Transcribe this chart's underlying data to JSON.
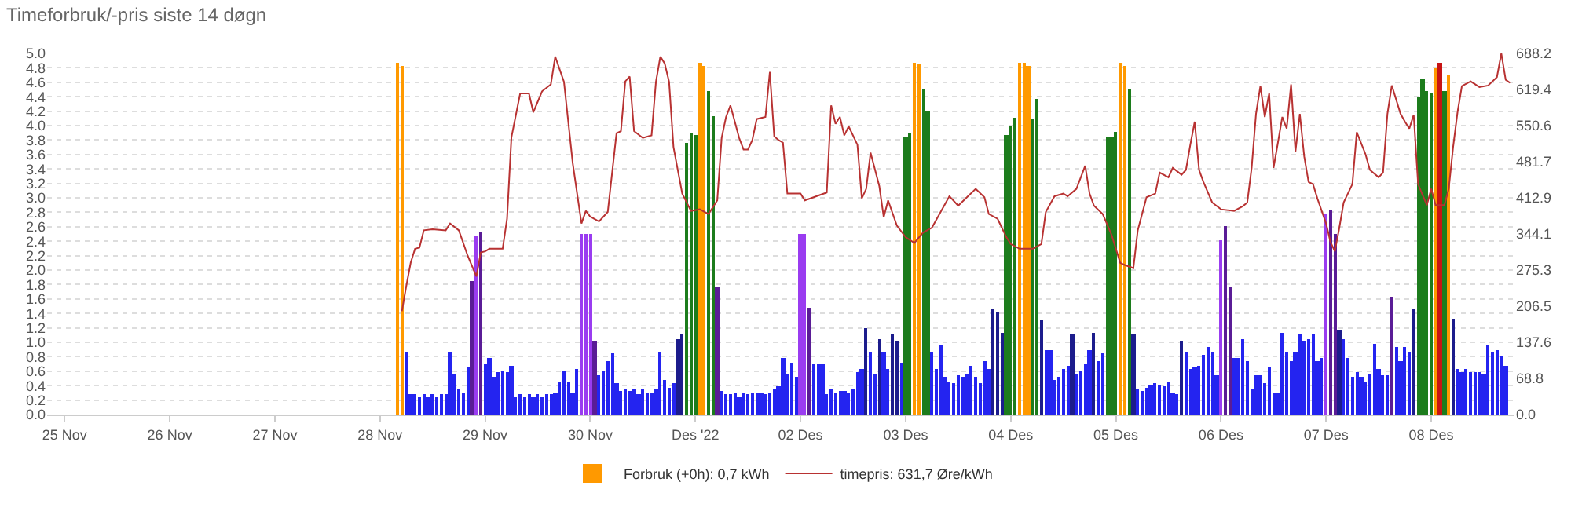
{
  "chart_data": {
    "type": "bar",
    "title": "Timeforbruk/-pris siste 14 døgn",
    "xlim": [
      "2022-11-24T20:00",
      "2022-12-08T19:00"
    ],
    "xticks": [
      {
        "value": "2022-11-25",
        "label": "25 Nov"
      },
      {
        "value": "2022-11-26",
        "label": "26 Nov"
      },
      {
        "value": "2022-11-27",
        "label": "27 Nov"
      },
      {
        "value": "2022-11-28",
        "label": "28 Nov"
      },
      {
        "value": "2022-11-29",
        "label": "29 Nov"
      },
      {
        "value": "2022-11-30",
        "label": "30 Nov"
      },
      {
        "value": "2022-12-01",
        "label": "Des '22"
      },
      {
        "value": "2022-12-02",
        "label": "02 Des"
      },
      {
        "value": "2022-12-03",
        "label": "03 Des"
      },
      {
        "value": "2022-12-04",
        "label": "04 Des"
      },
      {
        "value": "2022-12-05",
        "label": "05 Des"
      },
      {
        "value": "2022-12-06",
        "label": "06 Des"
      },
      {
        "value": "2022-12-07",
        "label": "07 Des"
      },
      {
        "value": "2022-12-08",
        "label": "08 Des"
      }
    ],
    "ylim": [
      0,
      5
    ],
    "yticks": [
      {
        "value": 0,
        "label": "0.0"
      },
      0.2,
      0.4,
      0.6,
      0.8,
      {
        "value": 1,
        "label": "1.0"
      },
      1.2,
      1.4,
      1.6,
      1.8,
      {
        "value": 2,
        "label": "2.0"
      },
      2.2,
      2.4,
      2.6,
      2.8,
      {
        "value": 3,
        "label": "3.0"
      },
      3.2,
      3.4,
      3.6,
      3.8,
      {
        "value": 4,
        "label": "4.0"
      },
      4.2,
      4.4,
      4.6,
      4.8,
      {
        "value": 5,
        "label": "5.0"
      }
    ],
    "y2lim": [
      0,
      688.2
    ],
    "y2ticks": [
      {
        "value": 0,
        "label": "0.0"
      },
      68.8,
      137.6,
      206.5,
      275.3,
      344.1,
      412.9,
      481.7,
      550.6,
      619.4,
      688.2
    ],
    "grid": "y",
    "legend": "bottom",
    "series": [
      {
        "name": "Forbruk (+0h): 0,7 kWh",
        "x": [
          "2022-11-28T04:00",
          "2022-11-28T05:00",
          "2022-11-28T06:00",
          "2022-11-28T07:00",
          "2022-11-28T08:00",
          "2022-11-28T09:00",
          "2022-11-28T10:00",
          "2022-11-28T11:00",
          "2022-11-28T12:00",
          "2022-11-28T13:00",
          "2022-11-28T14:00",
          "2022-11-28T15:00",
          "2022-11-28T16:00",
          "2022-11-28T17:00",
          "2022-11-28T18:00",
          "2022-11-28T19:00",
          "2022-11-28T20:00",
          "2022-11-28T21:00",
          "2022-11-28T22:00",
          "2022-11-28T23:00",
          "2022-11-29T00:00",
          "2022-11-29T01:00",
          "2022-11-29T02:00",
          "2022-11-29T03:00",
          "2022-11-29T04:00",
          "2022-11-29T05:00",
          "2022-11-29T06:00",
          "2022-11-29T07:00",
          "2022-11-29T08:00",
          "2022-11-29T09:00",
          "2022-11-29T10:00",
          "2022-11-29T11:00",
          "2022-11-29T12:00",
          "2022-11-29T13:00",
          "2022-11-29T14:00",
          "2022-11-29T15:00",
          "2022-11-29T16:00",
          "2022-11-29T17:00",
          "2022-11-29T18:00",
          "2022-11-29T19:00",
          "2022-11-29T20:00",
          "2022-11-29T21:00",
          "2022-11-29T22:00",
          "2022-11-29T23:00",
          "2022-11-30T00:00",
          "2022-11-30T01:00",
          "2022-11-30T02:00",
          "2022-11-30T03:00",
          "2022-11-30T04:00",
          "2022-11-30T05:00",
          "2022-11-30T06:00",
          "2022-11-30T07:00",
          "2022-11-30T08:00",
          "2022-11-30T09:00",
          "2022-11-30T10:00",
          "2022-11-30T11:00",
          "2022-11-30T12:00",
          "2022-11-30T13:00",
          "2022-11-30T14:00",
          "2022-11-30T15:00",
          "2022-11-30T16:00",
          "2022-11-30T17:00",
          "2022-11-30T18:00",
          "2022-11-30T19:00",
          "2022-11-30T20:00",
          "2022-11-30T21:00",
          "2022-11-30T22:00",
          "2022-11-30T23:00",
          "2022-12-01T00:00",
          "2022-12-01T01:00",
          "2022-12-01T02:00",
          "2022-12-01T03:00",
          "2022-12-01T04:00",
          "2022-12-01T05:00",
          "2022-12-01T06:00",
          "2022-12-01T07:00",
          "2022-12-01T08:00",
          "2022-12-01T09:00",
          "2022-12-01T10:00",
          "2022-12-01T11:00",
          "2022-12-01T12:00",
          "2022-12-01T13:00",
          "2022-12-01T14:00",
          "2022-12-01T15:00",
          "2022-12-01T16:00",
          "2022-12-01T17:00",
          "2022-12-01T18:00",
          "2022-12-01T19:00",
          "2022-12-01T20:00",
          "2022-12-01T21:00",
          "2022-12-01T22:00",
          "2022-12-01T23:00",
          "2022-12-02T00:00",
          "2022-12-02T01:00",
          "2022-12-02T02:00",
          "2022-12-02T03:00",
          "2022-12-02T04:00",
          "2022-12-02T05:00",
          "2022-12-02T06:00",
          "2022-12-02T07:00",
          "2022-12-02T08:00",
          "2022-12-02T09:00",
          "2022-12-02T10:00",
          "2022-12-02T11:00",
          "2022-12-02T12:00",
          "2022-12-02T13:00",
          "2022-12-02T14:00",
          "2022-12-02T15:00",
          "2022-12-02T16:00",
          "2022-12-02T17:00",
          "2022-12-02T18:00",
          "2022-12-02T19:00",
          "2022-12-02T20:00",
          "2022-12-02T21:00",
          "2022-12-02T22:00",
          "2022-12-02T23:00",
          "2022-12-03T00:00",
          "2022-12-03T01:00",
          "2022-12-03T02:00",
          "2022-12-03T03:00",
          "2022-12-03T04:00",
          "2022-12-03T05:00",
          "2022-12-03T06:00",
          "2022-12-03T07:00",
          "2022-12-03T08:00",
          "2022-12-03T09:00",
          "2022-12-03T10:00",
          "2022-12-03T11:00",
          "2022-12-03T12:00",
          "2022-12-03T13:00",
          "2022-12-03T14:00",
          "2022-12-03T15:00",
          "2022-12-03T16:00",
          "2022-12-03T17:00",
          "2022-12-03T18:00",
          "2022-12-03T19:00",
          "2022-12-03T20:00",
          "2022-12-03T21:00",
          "2022-12-03T22:00",
          "2022-12-03T23:00",
          "2022-12-04T00:00",
          "2022-12-04T01:00",
          "2022-12-04T02:00",
          "2022-12-04T03:00",
          "2022-12-04T04:00",
          "2022-12-04T05:00",
          "2022-12-04T06:00",
          "2022-12-04T07:00",
          "2022-12-04T08:00",
          "2022-12-04T09:00",
          "2022-12-04T10:00",
          "2022-12-04T11:00",
          "2022-12-04T12:00",
          "2022-12-04T13:00",
          "2022-12-04T14:00",
          "2022-12-04T15:00",
          "2022-12-04T16:00",
          "2022-12-04T17:00",
          "2022-12-04T18:00",
          "2022-12-04T19:00",
          "2022-12-04T20:00",
          "2022-12-04T21:00",
          "2022-12-04T22:00",
          "2022-12-04T23:00",
          "2022-12-05T00:00",
          "2022-12-05T01:00",
          "2022-12-05T02:00",
          "2022-12-05T03:00",
          "2022-12-05T04:00",
          "2022-12-05T05:00",
          "2022-12-05T06:00",
          "2022-12-05T07:00",
          "2022-12-05T08:00",
          "2022-12-05T09:00",
          "2022-12-05T10:00",
          "2022-12-05T11:00",
          "2022-12-05T12:00",
          "2022-12-05T13:00",
          "2022-12-05T14:00",
          "2022-12-05T15:00",
          "2022-12-05T16:00",
          "2022-12-05T17:00",
          "2022-12-05T18:00",
          "2022-12-05T19:00",
          "2022-12-05T20:00",
          "2022-12-05T21:00",
          "2022-12-05T22:00",
          "2022-12-05T23:00",
          "2022-12-06T00:00",
          "2022-12-06T01:00",
          "2022-12-06T02:00",
          "2022-12-06T03:00",
          "2022-12-06T04:00",
          "2022-12-06T05:00",
          "2022-12-06T06:00",
          "2022-12-06T07:00",
          "2022-12-06T08:00",
          "2022-12-06T09:00",
          "2022-12-06T10:00",
          "2022-12-06T11:00",
          "2022-12-06T12:00",
          "2022-12-06T13:00",
          "2022-12-06T14:00",
          "2022-12-06T15:00",
          "2022-12-06T16:00",
          "2022-12-06T17:00",
          "2022-12-06T18:00",
          "2022-12-06T19:00",
          "2022-12-06T20:00",
          "2022-12-06T21:00",
          "2022-12-06T22:00",
          "2022-12-06T23:00",
          "2022-12-07T00:00",
          "2022-12-07T01:00",
          "2022-12-07T02:00",
          "2022-12-07T03:00",
          "2022-12-07T04:00",
          "2022-12-07T05:00",
          "2022-12-07T06:00",
          "2022-12-07T07:00",
          "2022-12-07T08:00",
          "2022-12-07T09:00",
          "2022-12-07T10:00",
          "2022-12-07T11:00",
          "2022-12-07T12:00",
          "2022-12-07T13:00",
          "2022-12-07T14:00",
          "2022-12-07T15:00",
          "2022-12-07T16:00",
          "2022-12-07T17:00",
          "2022-12-07T18:00",
          "2022-12-07T19:00",
          "2022-12-07T20:00",
          "2022-12-07T21:00",
          "2022-12-07T22:00",
          "2022-12-07T23:00",
          "2022-12-08T00:00",
          "2022-12-08T01:00",
          "2022-12-08T02:00",
          "2022-12-08T03:00",
          "2022-12-08T04:00",
          "2022-12-08T05:00",
          "2022-12-08T06:00",
          "2022-12-08T07:00",
          "2022-12-08T08:00",
          "2022-12-08T09:00",
          "2022-12-08T10:00",
          "2022-12-08T11:00",
          "2022-12-08T12:00",
          "2022-12-08T13:00",
          "2022-12-08T14:00",
          "2022-12-08T15:00",
          "2022-12-08T16:00",
          "2022-12-08T17:00"
        ],
        "values": [
          4.87,
          4.83,
          0.88,
          0.28,
          0.28,
          0.24,
          0.28,
          0.24,
          0.28,
          0.24,
          0.28,
          0.28,
          0.88,
          0.56,
          0.35,
          0.31,
          0.65,
          1.85,
          2.47,
          2.53,
          0.7,
          0.79,
          0.52,
          0.58,
          0.6,
          0.59,
          0.67,
          0.24,
          0.28,
          0.24,
          0.28,
          0.24,
          0.28,
          0.24,
          0.28,
          0.28,
          0.31,
          0.46,
          0.6,
          0.46,
          0.31,
          0.62,
          2.5,
          2.5,
          2.5,
          1.02,
          0.55,
          0.6,
          0.75,
          0.84,
          0.44,
          0.33,
          0.35,
          0.33,
          0.35,
          0.28,
          0.35,
          0.31,
          0.31,
          0.35,
          0.88,
          0.48,
          0.36,
          0.44,
          1.04,
          1.1,
          3.76,
          3.9,
          3.88,
          4.87,
          4.83,
          4.48,
          4.14,
          1.77,
          0.33,
          0.28,
          0.28,
          0.31,
          0.24,
          0.31,
          0.28,
          0.31,
          0.31,
          0.31,
          0.28,
          0.31,
          0.35,
          0.4,
          0.79,
          0.56,
          0.71,
          0.52,
          2.49,
          2.49,
          1.48,
          0.69,
          0.7,
          0.7,
          0.28,
          0.35,
          0.31,
          0.33,
          0.33,
          0.31,
          0.35,
          0.59,
          0.63,
          1.19,
          0.88,
          0.57,
          1.04,
          0.88,
          0.63,
          1.1,
          1.02,
          0.71,
          3.85,
          3.9,
          4.87,
          4.84,
          4.5,
          4.2,
          0.88,
          0.63,
          0.95,
          0.53,
          0.46,
          0.44,
          0.54,
          0.52,
          0.56,
          0.67,
          0.52,
          0.44,
          0.75,
          0.64,
          1.46,
          1.42,
          1.14,
          3.88,
          4.0,
          4.1,
          4.87,
          4.87,
          4.83,
          4.08,
          4.38,
          1.3,
          0.9,
          0.9,
          0.48,
          0.53,
          0.64,
          0.67,
          1.11,
          0.56,
          0.6,
          0.69,
          0.9,
          1.12,
          0.75,
          0.84,
          3.85,
          3.85,
          3.92,
          4.87,
          4.83,
          4.5,
          1.1,
          0.34,
          0.33,
          0.36,
          0.41,
          0.44,
          0.42,
          0.39,
          0.46,
          0.31,
          0.29,
          1.02,
          0.88,
          0.62,
          0.66,
          0.67,
          0.83,
          0.94,
          0.88,
          0.55,
          2.42,
          2.61,
          1.76,
          0.78,
          0.78,
          1.04,
          0.75,
          0.34,
          0.54,
          0.54,
          0.44,
          0.66,
          0.31,
          0.31,
          1.12,
          0.88,
          0.75,
          0.88,
          1.1,
          1.02,
          1.04,
          1.1,
          0.75,
          0.79,
          2.78,
          2.83,
          2.49,
          1.17,
          1.04,
          0.79,
          0.52,
          0.59,
          0.52,
          0.46,
          0.56,
          0.98,
          0.62,
          0.54,
          0.54,
          1.64,
          0.94,
          0.75,
          0.94,
          0.88,
          1.46,
          4.4,
          4.65,
          4.47,
          4.45,
          4.8,
          4.87,
          4.47,
          4.7,
          1.33,
          0.64,
          0.58,
          0.62,
          0.59,
          0.59,
          0.59,
          0.57,
          0.96,
          0.88,
          0.9,
          0.8,
          0.68
        ],
        "colors": [
          "#ff9900",
          "#ff9900",
          "#2424f0",
          "#2424f0",
          "#2424f0",
          "#2424f0",
          "#2424f0",
          "#2424f0",
          "#2424f0",
          "#2424f0",
          "#2424f0",
          "#2424f0",
          "#2424f0",
          "#2424f0",
          "#2424f0",
          "#2424f0",
          "#2424f0",
          "#5a1c96",
          "#9a3cf0",
          "#5a1c96",
          "#2424f0",
          "#2424f0",
          "#2424f0",
          "#2424f0",
          "#2424f0",
          "#2424f0",
          "#2424f0",
          "#2424f0",
          "#2424f0",
          "#2424f0",
          "#2424f0",
          "#2424f0",
          "#2424f0",
          "#2424f0",
          "#2424f0",
          "#2424f0",
          "#2424f0",
          "#2424f0",
          "#2424f0",
          "#2424f0",
          "#2424f0",
          "#2424f0",
          "#9a3cf0",
          "#9a3cf0",
          "#9a3cf0",
          "#5a1c96",
          "#2424f0",
          "#2424f0",
          "#2424f0",
          "#2424f0",
          "#2424f0",
          "#2424f0",
          "#2424f0",
          "#2424f0",
          "#2424f0",
          "#2424f0",
          "#2424f0",
          "#2424f0",
          "#2424f0",
          "#2424f0",
          "#2424f0",
          "#2424f0",
          "#2424f0",
          "#2424f0",
          "#1c1c8c",
          "#1c1c8c",
          "#1c7c1c",
          "#1c7c1c",
          "#1c7c1c",
          "#ff9900",
          "#ff9900",
          "#1c7c1c",
          "#1c7c1c",
          "#5a1c96",
          "#2424f0",
          "#2424f0",
          "#2424f0",
          "#2424f0",
          "#2424f0",
          "#2424f0",
          "#2424f0",
          "#2424f0",
          "#2424f0",
          "#2424f0",
          "#2424f0",
          "#2424f0",
          "#2424f0",
          "#2424f0",
          "#2424f0",
          "#2424f0",
          "#2424f0",
          "#2424f0",
          "#9a3cf0",
          "#9a3cf0",
          "#5a1c96",
          "#2424f0",
          "#2424f0",
          "#2424f0",
          "#2424f0",
          "#2424f0",
          "#2424f0",
          "#2424f0",
          "#2424f0",
          "#2424f0",
          "#2424f0",
          "#2424f0",
          "#2424f0",
          "#1c1c8c",
          "#2424f0",
          "#2424f0",
          "#1c1c8c",
          "#2424f0",
          "#2424f0",
          "#1c1c8c",
          "#1c1c8c",
          "#2424f0",
          "#1c7c1c",
          "#1c7c1c",
          "#ff9900",
          "#ff9900",
          "#1c7c1c",
          "#1c7c1c",
          "#2424f0",
          "#2424f0",
          "#2424f0",
          "#2424f0",
          "#2424f0",
          "#2424f0",
          "#2424f0",
          "#2424f0",
          "#2424f0",
          "#2424f0",
          "#2424f0",
          "#2424f0",
          "#2424f0",
          "#2424f0",
          "#1c1c8c",
          "#1c1c8c",
          "#1c1c8c",
          "#1c7c1c",
          "#1c7c1c",
          "#1c7c1c",
          "#ff9900",
          "#ff9900",
          "#ff9900",
          "#1c7c1c",
          "#1c7c1c",
          "#1c1c8c",
          "#2424f0",
          "#2424f0",
          "#2424f0",
          "#2424f0",
          "#2424f0",
          "#2424f0",
          "#1c1c8c",
          "#2424f0",
          "#2424f0",
          "#2424f0",
          "#2424f0",
          "#1c1c8c",
          "#2424f0",
          "#2424f0",
          "#1c7c1c",
          "#1c7c1c",
          "#1c7c1c",
          "#ff9900",
          "#ff9900",
          "#1c7c1c",
          "#1c1c8c",
          "#2424f0",
          "#2424f0",
          "#2424f0",
          "#2424f0",
          "#2424f0",
          "#2424f0",
          "#2424f0",
          "#2424f0",
          "#2424f0",
          "#2424f0",
          "#1c1c8c",
          "#2424f0",
          "#2424f0",
          "#2424f0",
          "#2424f0",
          "#2424f0",
          "#2424f0",
          "#2424f0",
          "#2424f0",
          "#9a3cf0",
          "#5a1c96",
          "#5a1c96",
          "#2424f0",
          "#2424f0",
          "#2424f0",
          "#2424f0",
          "#2424f0",
          "#2424f0",
          "#2424f0",
          "#2424f0",
          "#2424f0",
          "#2424f0",
          "#2424f0",
          "#2424f0",
          "#2424f0",
          "#2424f0",
          "#2424f0",
          "#2424f0",
          "#2424f0",
          "#2424f0",
          "#2424f0",
          "#2424f0",
          "#2424f0",
          "#9a3cf0",
          "#5a1c96",
          "#5a1c96",
          "#1c1c8c",
          "#2424f0",
          "#2424f0",
          "#2424f0",
          "#2424f0",
          "#2424f0",
          "#2424f0",
          "#2424f0",
          "#2424f0",
          "#2424f0",
          "#2424f0",
          "#2424f0",
          "#5a1c96",
          "#2424f0",
          "#2424f0",
          "#2424f0",
          "#2424f0",
          "#1c1c8c",
          "#1c7c1c",
          "#1c7c1c",
          "#1c7c1c",
          "#1c7c1c",
          "#ff9900",
          "#c81414",
          "#1c7c1c",
          "#ff9900",
          "#1c1c8c",
          "#2424f0",
          "#2424f0",
          "#2424f0",
          "#2424f0",
          "#2424f0",
          "#2424f0",
          "#2424f0",
          "#2424f0",
          "#2424f0",
          "#2424f0",
          "#2424f0",
          "#2424f0"
        ]
      },
      {
        "name": "timepris: 631,7 Øre/kWh",
        "type": "line",
        "axis": "y2",
        "color": "#b83232",
        "x": [
          "2022-11-28T05:00",
          "2022-11-28T06:00",
          "2022-11-28T07:00",
          "2022-11-28T08:00",
          "2022-11-28T09:00",
          "2022-11-28T10:00",
          "2022-11-28T12:00",
          "2022-11-28T15:00",
          "2022-11-28T16:00",
          "2022-11-28T18:00",
          "2022-11-28T20:00",
          "2022-11-28T22:00",
          "2022-11-28T23:00",
          "2022-11-29T00:00",
          "2022-11-29T01:00",
          "2022-11-29T04:00",
          "2022-11-29T05:00",
          "2022-11-29T06:00",
          "2022-11-29T08:00",
          "2022-11-29T10:00",
          "2022-11-29T11:00",
          "2022-11-29T13:00",
          "2022-11-29T15:00",
          "2022-11-29T16:00",
          "2022-11-29T18:00",
          "2022-11-29T20:00",
          "2022-11-29T22:00",
          "2022-11-29T23:00",
          "2022-11-30T00:00",
          "2022-11-30T02:00",
          "2022-11-30T04:00",
          "2022-11-30T06:00",
          "2022-11-30T07:00",
          "2022-11-30T08:00",
          "2022-11-30T09:00",
          "2022-11-30T10:00",
          "2022-11-30T12:00",
          "2022-11-30T14:00",
          "2022-11-30T15:00",
          "2022-11-30T16:00",
          "2022-11-30T17:00",
          "2022-11-30T18:00",
          "2022-11-30T19:00",
          "2022-11-30T21:00",
          "2022-11-30T23:00",
          "2022-12-01T01:00",
          "2022-12-01T03:00",
          "2022-12-01T05:00",
          "2022-12-01T06:00",
          "2022-12-01T07:00",
          "2022-12-01T08:00",
          "2022-12-01T10:00",
          "2022-12-01T11:00",
          "2022-12-01T12:00",
          "2022-12-01T13:00",
          "2022-12-01T14:00",
          "2022-12-01T16:00",
          "2022-12-01T17:00",
          "2022-12-01T18:00",
          "2022-12-01T19:00",
          "2022-12-01T20:00",
          "2022-12-01T21:00",
          "2022-12-02T00:00",
          "2022-12-02T01:00",
          "2022-12-02T03:00",
          "2022-12-02T06:00",
          "2022-12-02T07:00",
          "2022-12-02T08:00",
          "2022-12-02T09:00",
          "2022-12-02T10:00",
          "2022-12-02T11:00",
          "2022-12-02T13:00",
          "2022-12-02T14:00",
          "2022-12-02T15:00",
          "2022-12-02T16:00",
          "2022-12-02T18:00",
          "2022-12-02T19:00",
          "2022-12-02T20:00",
          "2022-12-02T22:00",
          "2022-12-03T00:00",
          "2022-12-03T02:00",
          "2022-12-03T04:00",
          "2022-12-03T06:00",
          "2022-12-03T08:00",
          "2022-12-03T10:00",
          "2022-12-03T12:00",
          "2022-12-03T14:00",
          "2022-12-03T16:00",
          "2022-12-03T18:00",
          "2022-12-03T19:00",
          "2022-12-03T21:00",
          "2022-12-03T23:00",
          "2022-12-04T00:00",
          "2022-12-04T02:00",
          "2022-12-04T05:00",
          "2022-12-04T07:00",
          "2022-12-04T08:00",
          "2022-12-04T10:00",
          "2022-12-04T12:00",
          "2022-12-04T13:00",
          "2022-12-04T15:00",
          "2022-12-04T17:00",
          "2022-12-04T18:00",
          "2022-12-04T19:00",
          "2022-12-04T21:00",
          "2022-12-04T23:00",
          "2022-12-05T01:00",
          "2022-12-05T02:00",
          "2022-12-05T04:00",
          "2022-12-05T05:00",
          "2022-12-05T07:00",
          "2022-12-05T09:00",
          "2022-12-05T10:00",
          "2022-12-05T12:00",
          "2022-12-05T13:00",
          "2022-12-05T15:00",
          "2022-12-05T16:00",
          "2022-12-05T17:00",
          "2022-12-05T18:00",
          "2022-12-05T19:00",
          "2022-12-05T20:00",
          "2022-12-05T22:00",
          "2022-12-06T00:00",
          "2022-12-06T03:00",
          "2022-12-06T05:00",
          "2022-12-06T06:00",
          "2022-12-06T07:00",
          "2022-12-06T08:00",
          "2022-12-06T09:00",
          "2022-12-06T10:00",
          "2022-12-06T11:00",
          "2022-12-06T12:00",
          "2022-12-06T13:00",
          "2022-12-06T14:00",
          "2022-12-06T15:00",
          "2022-12-06T16:00",
          "2022-12-06T17:00",
          "2022-12-06T18:00",
          "2022-12-06T19:00",
          "2022-12-06T20:00",
          "2022-12-06T21:00",
          "2022-12-06T22:00",
          "2022-12-07T00:00",
          "2022-12-07T01:00",
          "2022-12-07T02:00",
          "2022-12-07T03:00",
          "2022-12-07T04:00",
          "2022-12-07T06:00",
          "2022-12-07T07:00",
          "2022-12-07T09:00",
          "2022-12-07T10:00",
          "2022-12-07T12:00",
          "2022-12-07T13:00",
          "2022-12-07T14:00",
          "2022-12-07T15:00",
          "2022-12-07T17:00",
          "2022-12-07T18:00",
          "2022-12-07T19:00",
          "2022-12-07T20:00",
          "2022-12-07T21:00",
          "2022-12-07T23:00",
          "2022-12-08T00:00",
          "2022-12-08T01:00",
          "2022-12-08T03:00",
          "2022-12-08T04:00",
          "2022-12-08T05:00",
          "2022-12-08T06:00",
          "2022-12-08T07:00",
          "2022-12-08T09:00",
          "2022-12-08T11:00",
          "2022-12-08T13:00",
          "2022-12-08T15:00",
          "2022-12-08T16:00",
          "2022-12-08T17:00",
          "2022-12-08T18:00"
        ],
        "values": [
          197,
          245,
          289,
          316,
          318,
          351,
          353,
          351,
          364,
          351,
          303,
          263,
          309,
          311,
          316,
          316,
          373,
          528,
          612,
          612,
          576,
          616,
          629,
          682,
          634,
          479,
          364,
          388,
          377,
          368,
          386,
          536,
          540,
          635,
          644,
          540,
          527,
          532,
          634,
          682,
          669,
          634,
          510,
          421,
          388,
          391,
          382,
          408,
          527,
          567,
          589,
          527,
          505,
          505,
          523,
          563,
          567,
          653,
          530,
          523,
          518,
          421,
          421,
          408,
          414,
          423,
          589,
          554,
          567,
          532,
          549,
          514,
          412,
          430,
          499,
          435,
          376,
          408,
          360,
          338,
          327,
          347,
          356,
          386,
          416,
          398,
          414,
          430,
          414,
          382,
          373,
          338,
          325,
          316,
          316,
          325,
          386,
          416,
          421,
          416,
          430,
          474,
          421,
          398,
          382,
          343,
          289,
          285,
          279,
          351,
          414,
          421,
          461,
          452,
          470,
          457,
          466,
          514,
          558,
          466,
          443,
          404,
          391,
          388,
          397,
          404,
          470,
          573,
          626,
          567,
          612,
          470,
          518,
          567,
          545,
          629,
          501,
          573,
          492,
          443,
          439,
          412,
          364,
          329,
          311,
          355,
          404,
          439,
          538,
          496,
          466,
          452,
          461,
          573,
          627,
          573,
          558,
          545,
          571,
          439,
          399,
          430,
          399,
          399,
          430,
          510,
          576,
          626,
          635,
          624,
          627,
          643,
          688,
          638,
          632
        ]
      }
    ]
  }
}
